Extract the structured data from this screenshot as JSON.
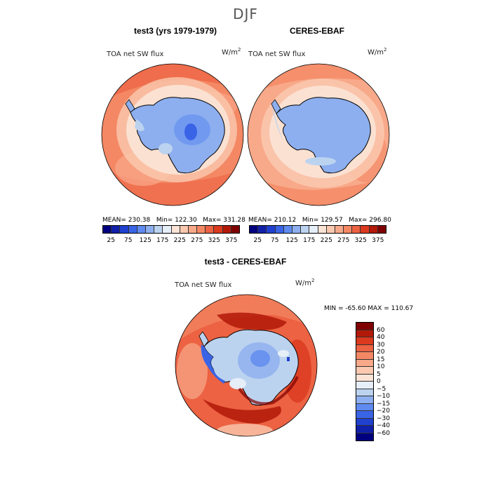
{
  "title": "DJF",
  "panels": [
    {
      "title": "test3 (yrs 1979-1979)",
      "variable": "TOA net SW flux",
      "units": "W/m",
      "units_sup": "2",
      "mean": "MEAN= 230.38",
      "min": "Min= 122.30",
      "max": "Max= 331.28"
    },
    {
      "title": "CERES-EBAF",
      "variable": "TOA net SW flux",
      "units": "W/m",
      "units_sup": "2",
      "mean": "MEAN= 210.12",
      "min": "Min= 129.57",
      "max": "Max= 296.80"
    }
  ],
  "diff_panel": {
    "title": "test3 - CERES-EBAF",
    "variable": "TOA net SW flux",
    "units": "W/m",
    "units_sup": "2",
    "stats": "MIN = -65.60 MAX = 110.67"
  },
  "colorbar_abs": {
    "colors": [
      "#00007f",
      "#1020a8",
      "#2040cf",
      "#3a64e6",
      "#5f8bf0",
      "#8dafef",
      "#bcd3f0",
      "#e6eef8",
      "#fbe4d6",
      "#fac9af",
      "#f8a98a",
      "#f48864",
      "#ec6242",
      "#db3a1f",
      "#b31908",
      "#7f0000"
    ],
    "labels": [
      "25",
      "75",
      "125",
      "175",
      "225",
      "275",
      "325",
      "375"
    ]
  },
  "colorbar_diff": {
    "colors": [
      "#7f0000",
      "#b31908",
      "#db3a1f",
      "#ec6242",
      "#f48864",
      "#f8a98a",
      "#fac9af",
      "#fbe4d6",
      "#e6eef8",
      "#bcd3f0",
      "#8dafef",
      "#5f8bf0",
      "#3a64e6",
      "#2040cf",
      "#1020a8",
      "#00007f"
    ],
    "labels": [
      "60",
      "40",
      "30",
      "20",
      "15",
      "10",
      "5",
      "0",
      "−5",
      "−10",
      "−15",
      "−20",
      "−30",
      "−40",
      "−60"
    ]
  }
}
